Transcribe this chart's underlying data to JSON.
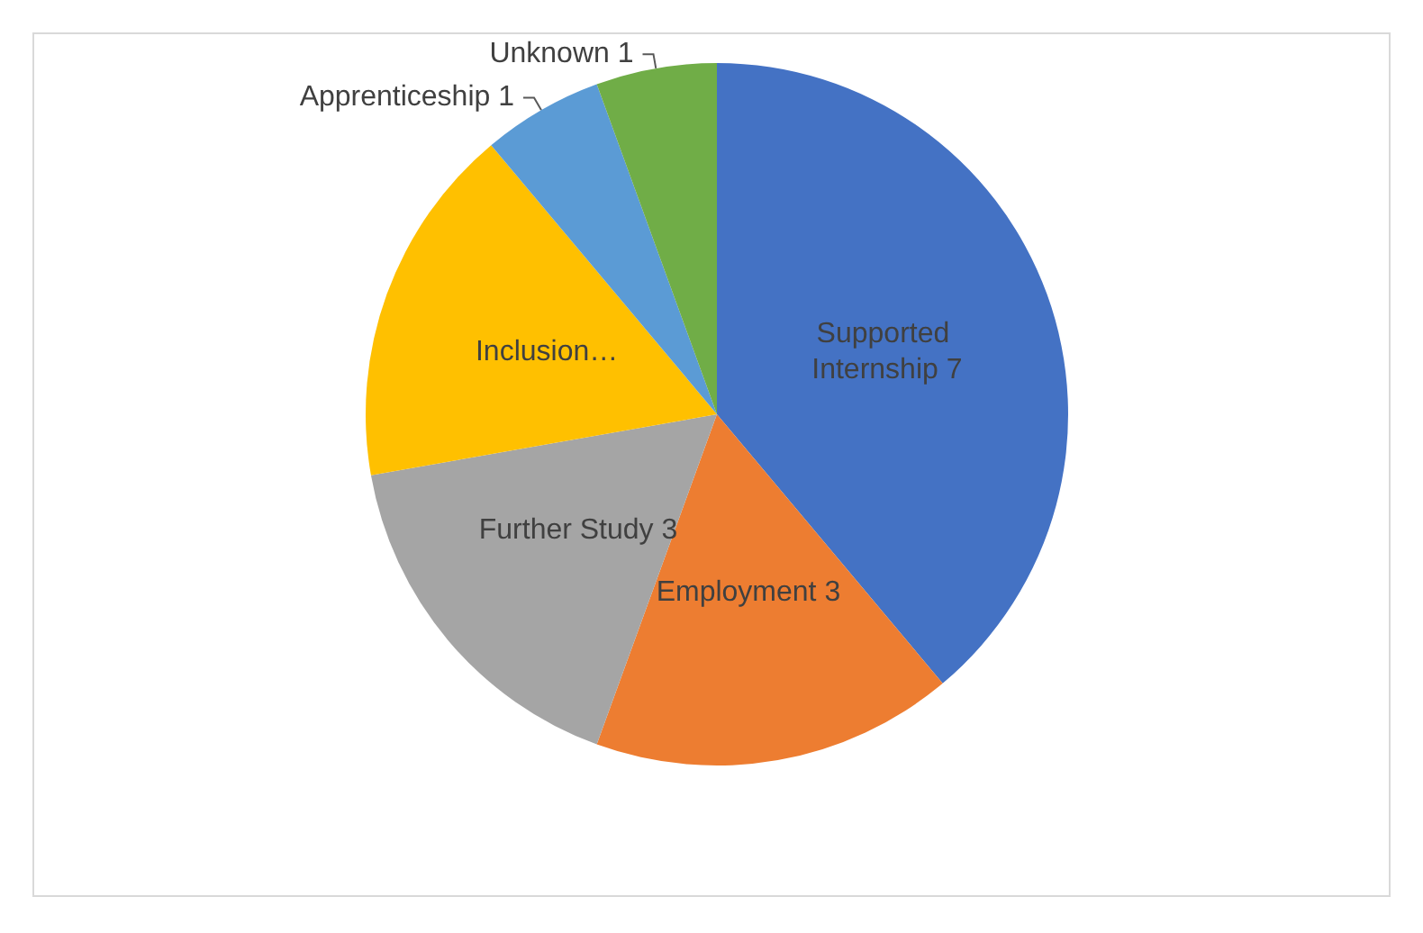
{
  "chart_data": {
    "type": "pie",
    "categories": [
      "Supported Internship",
      "Employment",
      "Further Study",
      "Inclusion…",
      "Apprenticeship",
      "Unknown"
    ],
    "values": [
      7,
      3,
      3,
      3,
      1,
      1
    ],
    "colors": [
      "#4472c4",
      "#ed7d31",
      "#a5a5a5",
      "#ffc000",
      "#5b9bd5",
      "#70ad47"
    ],
    "value_labels": [
      "7",
      "3",
      "3",
      null,
      "1",
      "1"
    ],
    "legend": false
  }
}
